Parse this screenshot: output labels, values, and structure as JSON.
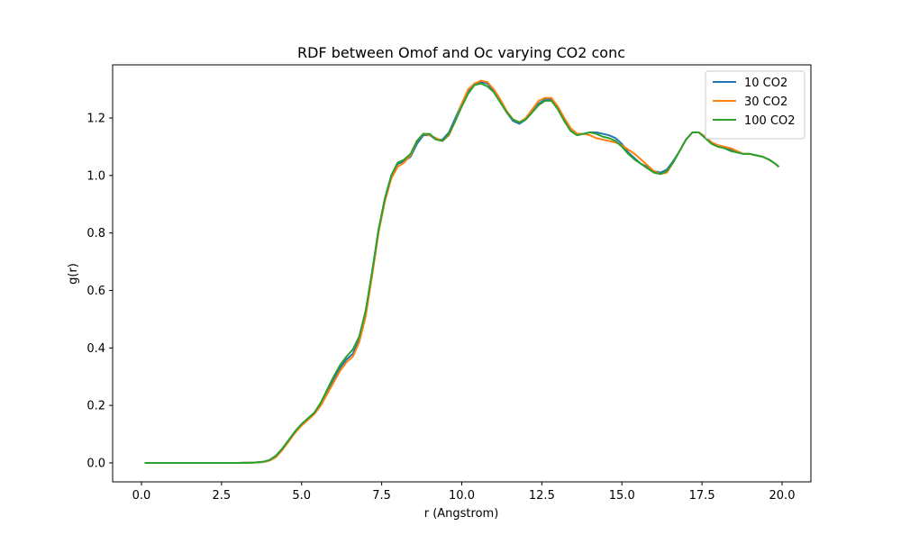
{
  "chart_data": {
    "type": "line",
    "title": "RDF between Omof and Oc varying CO2 conc",
    "xlabel": "r (Angstrom)",
    "ylabel": "g(r)",
    "xlim": [
      -0.9,
      20.9
    ],
    "ylim": [
      -0.066,
      1.385
    ],
    "xticks": [
      0.0,
      2.5,
      5.0,
      7.5,
      10.0,
      12.5,
      15.0,
      17.5,
      20.0
    ],
    "xtick_labels": [
      "0.0",
      "2.5",
      "5.0",
      "7.5",
      "10.0",
      "12.5",
      "15.0",
      "17.5",
      "20.0"
    ],
    "yticks": [
      0.0,
      0.2,
      0.4,
      0.6,
      0.8,
      1.0,
      1.2
    ],
    "ytick_labels": [
      "0.0",
      "0.2",
      "0.4",
      "0.6",
      "0.8",
      "1.0",
      "1.2"
    ],
    "grid": false,
    "legend_position": "top-right",
    "series": [
      {
        "name": "10 CO2",
        "color": "#1f77b4",
        "x": [
          0.1,
          1.0,
          2.0,
          3.0,
          3.5,
          3.8,
          4.0,
          4.2,
          4.4,
          4.6,
          4.8,
          5.0,
          5.2,
          5.4,
          5.6,
          5.8,
          6.0,
          6.2,
          6.4,
          6.6,
          6.8,
          7.0,
          7.2,
          7.4,
          7.6,
          7.8,
          8.0,
          8.2,
          8.4,
          8.6,
          8.8,
          9.0,
          9.2,
          9.4,
          9.6,
          9.8,
          10.0,
          10.2,
          10.4,
          10.6,
          10.8,
          11.0,
          11.2,
          11.4,
          11.6,
          11.8,
          12.0,
          12.2,
          12.4,
          12.6,
          12.8,
          13.0,
          13.2,
          13.4,
          13.6,
          13.8,
          14.0,
          14.2,
          14.4,
          14.6,
          14.8,
          15.0,
          15.2,
          15.4,
          15.6,
          15.8,
          16.0,
          16.2,
          16.4,
          16.6,
          16.8,
          17.0,
          17.2,
          17.4,
          17.6,
          17.8,
          18.0,
          18.2,
          18.4,
          18.6,
          18.8,
          19.0,
          19.2,
          19.4,
          19.6,
          19.8,
          19.9
        ],
        "y": [
          0.0,
          0.0,
          0.0,
          0.0,
          0.001,
          0.003,
          0.01,
          0.025,
          0.05,
          0.08,
          0.11,
          0.135,
          0.155,
          0.175,
          0.205,
          0.245,
          0.29,
          0.33,
          0.36,
          0.38,
          0.43,
          0.52,
          0.66,
          0.81,
          0.92,
          1.0,
          1.04,
          1.05,
          1.065,
          1.11,
          1.14,
          1.14,
          1.125,
          1.125,
          1.15,
          1.2,
          1.25,
          1.29,
          1.32,
          1.325,
          1.32,
          1.295,
          1.26,
          1.22,
          1.19,
          1.18,
          1.195,
          1.22,
          1.25,
          1.265,
          1.265,
          1.235,
          1.19,
          1.155,
          1.145,
          1.145,
          1.15,
          1.15,
          1.145,
          1.14,
          1.13,
          1.11,
          1.08,
          1.06,
          1.04,
          1.03,
          1.015,
          1.01,
          1.02,
          1.05,
          1.085,
          1.125,
          1.15,
          1.15,
          1.135,
          1.115,
          1.105,
          1.1,
          1.09,
          1.08,
          1.075,
          1.075,
          1.07,
          1.065,
          1.055,
          1.04,
          1.03
        ]
      },
      {
        "name": "30 CO2",
        "color": "#ff7f0e",
        "x": [
          0.1,
          1.0,
          2.0,
          3.0,
          3.5,
          3.8,
          4.0,
          4.2,
          4.4,
          4.6,
          4.8,
          5.0,
          5.2,
          5.4,
          5.6,
          5.8,
          6.0,
          6.2,
          6.4,
          6.6,
          6.8,
          7.0,
          7.2,
          7.4,
          7.6,
          7.8,
          8.0,
          8.2,
          8.4,
          8.6,
          8.8,
          9.0,
          9.2,
          9.4,
          9.6,
          9.8,
          10.0,
          10.2,
          10.4,
          10.6,
          10.8,
          11.0,
          11.2,
          11.4,
          11.6,
          11.8,
          12.0,
          12.2,
          12.4,
          12.6,
          12.8,
          13.0,
          13.2,
          13.4,
          13.6,
          13.8,
          14.0,
          14.2,
          14.4,
          14.6,
          14.8,
          15.0,
          15.2,
          15.4,
          15.6,
          15.8,
          16.0,
          16.2,
          16.4,
          16.6,
          16.8,
          17.0,
          17.2,
          17.4,
          17.6,
          17.8,
          18.0,
          18.2,
          18.4,
          18.6,
          18.8,
          19.0,
          19.2,
          19.4,
          19.6,
          19.8,
          19.9
        ],
        "y": [
          0.0,
          0.0,
          0.0,
          0.0,
          0.001,
          0.003,
          0.008,
          0.02,
          0.045,
          0.075,
          0.105,
          0.13,
          0.15,
          0.17,
          0.2,
          0.24,
          0.28,
          0.32,
          0.35,
          0.37,
          0.42,
          0.51,
          0.65,
          0.8,
          0.91,
          0.99,
          1.03,
          1.045,
          1.07,
          1.12,
          1.145,
          1.14,
          1.13,
          1.12,
          1.14,
          1.19,
          1.25,
          1.3,
          1.32,
          1.33,
          1.325,
          1.3,
          1.265,
          1.225,
          1.195,
          1.185,
          1.2,
          1.23,
          1.26,
          1.27,
          1.27,
          1.24,
          1.2,
          1.165,
          1.145,
          1.145,
          1.14,
          1.13,
          1.125,
          1.12,
          1.115,
          1.105,
          1.09,
          1.075,
          1.055,
          1.035,
          1.015,
          1.005,
          1.01,
          1.045,
          1.085,
          1.125,
          1.15,
          1.15,
          1.135,
          1.115,
          1.105,
          1.1,
          1.095,
          1.085,
          1.075,
          1.075,
          1.07,
          1.065,
          1.055,
          1.04,
          1.03
        ]
      },
      {
        "name": "100 CO2",
        "color": "#2ca02c",
        "x": [
          0.1,
          1.0,
          2.0,
          3.0,
          3.5,
          3.8,
          4.0,
          4.2,
          4.4,
          4.6,
          4.8,
          5.0,
          5.2,
          5.4,
          5.6,
          5.8,
          6.0,
          6.2,
          6.4,
          6.6,
          6.8,
          7.0,
          7.2,
          7.4,
          7.6,
          7.8,
          8.0,
          8.2,
          8.4,
          8.6,
          8.8,
          9.0,
          9.2,
          9.4,
          9.6,
          9.8,
          10.0,
          10.2,
          10.4,
          10.6,
          10.8,
          11.0,
          11.2,
          11.4,
          11.6,
          11.8,
          12.0,
          12.2,
          12.4,
          12.6,
          12.8,
          13.0,
          13.2,
          13.4,
          13.6,
          13.8,
          14.0,
          14.2,
          14.4,
          14.6,
          14.8,
          15.0,
          15.2,
          15.4,
          15.6,
          15.8,
          16.0,
          16.2,
          16.4,
          16.6,
          16.8,
          17.0,
          17.2,
          17.4,
          17.6,
          17.8,
          18.0,
          18.2,
          18.4,
          18.6,
          18.8,
          19.0,
          19.2,
          19.4,
          19.6,
          19.8,
          19.9
        ],
        "y": [
          0.0,
          0.0,
          0.0,
          0.0,
          0.001,
          0.004,
          0.01,
          0.025,
          0.05,
          0.08,
          0.11,
          0.135,
          0.155,
          0.175,
          0.21,
          0.255,
          0.3,
          0.34,
          0.37,
          0.395,
          0.44,
          0.53,
          0.665,
          0.81,
          0.92,
          1.0,
          1.045,
          1.055,
          1.075,
          1.12,
          1.145,
          1.145,
          1.125,
          1.12,
          1.145,
          1.19,
          1.24,
          1.285,
          1.315,
          1.32,
          1.31,
          1.29,
          1.255,
          1.22,
          1.195,
          1.185,
          1.195,
          1.22,
          1.245,
          1.26,
          1.26,
          1.23,
          1.19,
          1.155,
          1.14,
          1.145,
          1.15,
          1.145,
          1.135,
          1.13,
          1.12,
          1.1,
          1.075,
          1.055,
          1.04,
          1.025,
          1.01,
          1.005,
          1.015,
          1.045,
          1.085,
          1.125,
          1.15,
          1.15,
          1.13,
          1.11,
          1.1,
          1.095,
          1.085,
          1.08,
          1.075,
          1.075,
          1.07,
          1.065,
          1.055,
          1.04,
          1.03
        ]
      }
    ]
  }
}
